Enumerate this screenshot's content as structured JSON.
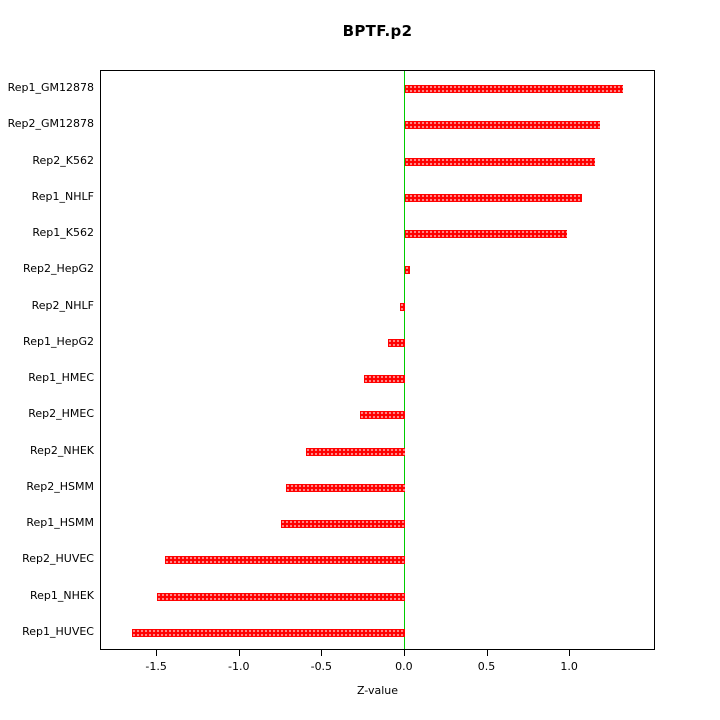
{
  "chart_data": {
    "type": "bar",
    "orientation": "horizontal",
    "title": "BPTF.p2",
    "xlabel": "Z-value",
    "ylabel": "",
    "categories": [
      "Rep1_GM12878",
      "Rep2_GM12878",
      "Rep2_K562",
      "Rep1_NHLF",
      "Rep1_K562",
      "Rep2_HepG2",
      "Rep2_NHLF",
      "Rep1_HepG2",
      "Rep1_HMEC",
      "Rep2_HMEC",
      "Rep2_NHEK",
      "Rep2_HSMM",
      "Rep1_HSMM",
      "Rep2_HUVEC",
      "Rep1_NHEK",
      "Rep1_HUVEC"
    ],
    "values": [
      1.32,
      1.18,
      1.15,
      1.07,
      0.98,
      0.03,
      -0.03,
      -0.1,
      -0.25,
      -0.27,
      -0.6,
      -0.72,
      -0.75,
      -1.45,
      -1.5,
      -1.65
    ],
    "xlim": [
      -1.84,
      1.52
    ],
    "xticks": [
      -1.5,
      -1.0,
      -0.5,
      0.0,
      0.5,
      1.0
    ],
    "xtick_labels": [
      "-1.5",
      "-1.0",
      "-0.5",
      "0.0",
      "0.5",
      "1.0"
    ],
    "bar_color": "#ff0000",
    "zero_line_color": "#00cc00",
    "grid": false,
    "legend": false
  }
}
